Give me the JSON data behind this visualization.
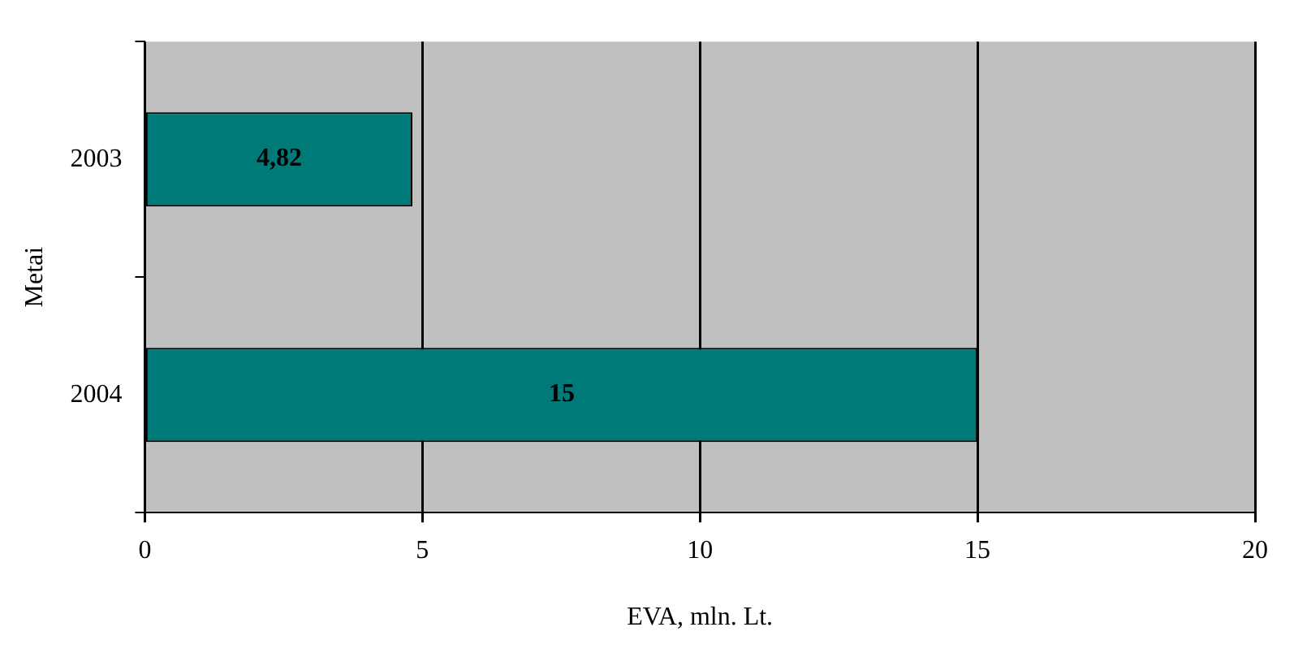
{
  "chart_data": {
    "type": "bar",
    "orientation": "horizontal",
    "xlabel": "EVA, mln. Lt.",
    "ylabel": "Metai",
    "categories": [
      "2003",
      "2004"
    ],
    "values": [
      4.82,
      15
    ],
    "value_labels": [
      "4,82",
      "15"
    ],
    "color": "#007a78",
    "xlim": [
      0,
      20
    ],
    "xticks": [
      0,
      5,
      10,
      15,
      20
    ],
    "grid": "x",
    "legend": false
  }
}
